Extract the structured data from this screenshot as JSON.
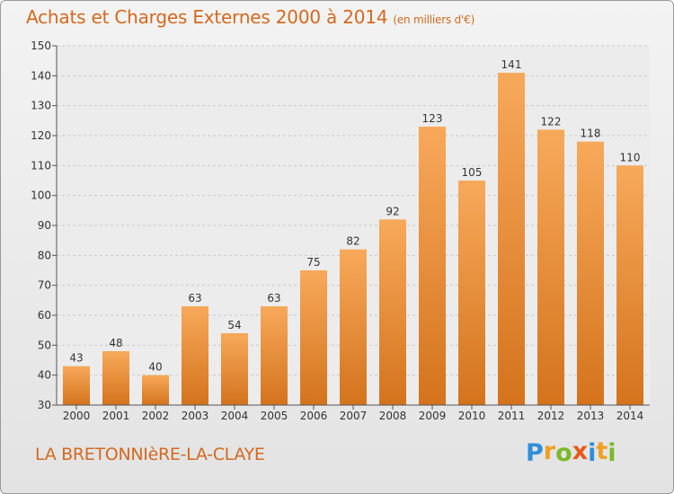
{
  "title": "Achats et Charges Externes 2000 à 2014",
  "unit": "(en milliers d'€)",
  "commune": "LA BRETONNIèRE-LA-CLAYE",
  "logo": {
    "letters": [
      "P",
      "r",
      "o",
      "x",
      "i",
      "t",
      "i"
    ],
    "colors": [
      "#2f8fd8",
      "#f0a020",
      "#7ab929",
      "#e85a1c",
      "#2f8fd8",
      "#f0a020",
      "#7ab929"
    ]
  },
  "colors": {
    "bar_top": "#f7a95a",
    "bar_bottom": "#d4731c",
    "accent": "#d2691e"
  },
  "chart_data": {
    "type": "bar",
    "categories": [
      "2000",
      "2001",
      "2002",
      "2003",
      "2004",
      "2005",
      "2006",
      "2007",
      "2008",
      "2009",
      "2010",
      "2011",
      "2012",
      "2013",
      "2014"
    ],
    "values": [
      43,
      48,
      40,
      63,
      54,
      63,
      75,
      82,
      92,
      123,
      105,
      141,
      122,
      118,
      110
    ],
    "title": "Achats et Charges Externes 2000 à 2014",
    "xlabel": "",
    "ylabel": "",
    "ylim": [
      30,
      150
    ],
    "yticks": [
      30,
      40,
      50,
      60,
      70,
      80,
      90,
      100,
      110,
      120,
      130,
      140,
      150
    ],
    "grid": true,
    "data_labels": true
  }
}
